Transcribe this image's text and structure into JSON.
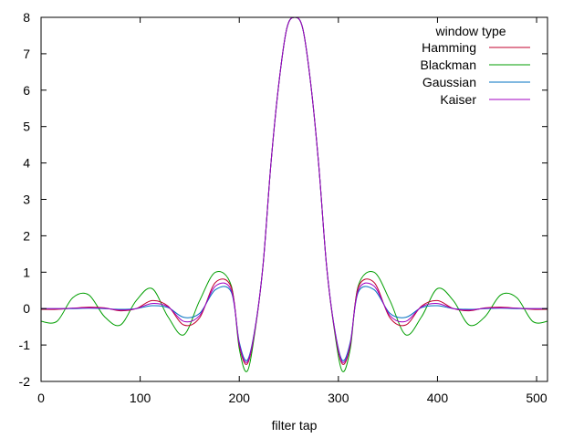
{
  "chart_data": {
    "type": "line",
    "title": "",
    "xlabel": "filter tap",
    "ylabel": "",
    "xlim": [
      0,
      511
    ],
    "ylim": [
      -2,
      8
    ],
    "xticks": [
      0,
      100,
      200,
      300,
      400,
      500
    ],
    "yticks": [
      -2,
      -1,
      0,
      1,
      2,
      3,
      4,
      5,
      6,
      7,
      8
    ],
    "grid": false,
    "legend": {
      "title": "window type",
      "placement": "top-right"
    },
    "x": [
      0,
      16,
      32,
      48,
      64,
      80,
      96,
      112,
      128,
      144,
      160,
      176,
      192,
      200,
      208,
      216,
      224,
      232,
      240,
      248,
      256,
      264,
      272,
      280,
      288,
      296,
      304,
      312,
      320,
      336,
      352,
      368,
      384,
      400,
      416,
      432,
      448,
      464,
      480,
      496,
      511
    ],
    "series": [
      {
        "name": "Hamming",
        "color": "#c0002e",
        "values": [
          -0.02,
          -0.02,
          0.01,
          0.04,
          0.02,
          -0.06,
          0.0,
          0.22,
          0.07,
          -0.45,
          -0.25,
          0.72,
          0.58,
          -1.0,
          -1.52,
          -0.55,
          1.2,
          4.0,
          6.2,
          7.7,
          8.0,
          7.7,
          6.2,
          4.0,
          1.2,
          -0.55,
          -1.52,
          -1.0,
          0.58,
          0.72,
          -0.25,
          -0.45,
          0.07,
          0.22,
          0.0,
          -0.06,
          0.02,
          0.04,
          0.01,
          -0.02,
          -0.02
        ]
      },
      {
        "name": "Blackman",
        "color": "#009e00",
        "values": [
          -0.35,
          -0.35,
          0.3,
          0.38,
          -0.22,
          -0.45,
          0.22,
          0.55,
          -0.22,
          -0.72,
          0.22,
          1.0,
          0.62,
          -1.1,
          -1.72,
          -0.6,
          1.2,
          4.0,
          6.2,
          7.7,
          8.0,
          7.7,
          6.2,
          4.0,
          1.2,
          -0.6,
          -1.72,
          -1.1,
          0.62,
          1.0,
          0.22,
          -0.72,
          -0.22,
          0.55,
          0.22,
          -0.45,
          -0.22,
          0.38,
          0.3,
          -0.35,
          -0.35
        ]
      },
      {
        "name": "Gaussian",
        "color": "#0070c0",
        "values": [
          0.0,
          0.0,
          0.0,
          0.01,
          0.0,
          -0.02,
          0.0,
          0.08,
          0.03,
          -0.24,
          -0.13,
          0.52,
          0.45,
          -0.92,
          -1.42,
          -0.52,
          1.2,
          4.0,
          6.2,
          7.7,
          8.0,
          7.7,
          6.2,
          4.0,
          1.2,
          -0.52,
          -1.42,
          -0.92,
          0.45,
          0.52,
          -0.13,
          -0.24,
          0.03,
          0.08,
          0.0,
          -0.02,
          0.0,
          0.01,
          0.0,
          0.0,
          0.0
        ]
      },
      {
        "name": "Kaiser",
        "color": "#a000c0",
        "values": [
          0.0,
          0.0,
          0.01,
          0.02,
          0.01,
          -0.04,
          0.0,
          0.14,
          0.05,
          -0.35,
          -0.19,
          0.62,
          0.5,
          -0.97,
          -1.47,
          -0.54,
          1.2,
          4.0,
          6.2,
          7.7,
          8.0,
          7.7,
          6.2,
          4.0,
          1.2,
          -0.54,
          -1.47,
          -0.97,
          0.5,
          0.62,
          -0.19,
          -0.35,
          0.05,
          0.14,
          0.0,
          -0.04,
          0.01,
          0.02,
          0.01,
          0.0,
          0.0
        ]
      }
    ]
  }
}
